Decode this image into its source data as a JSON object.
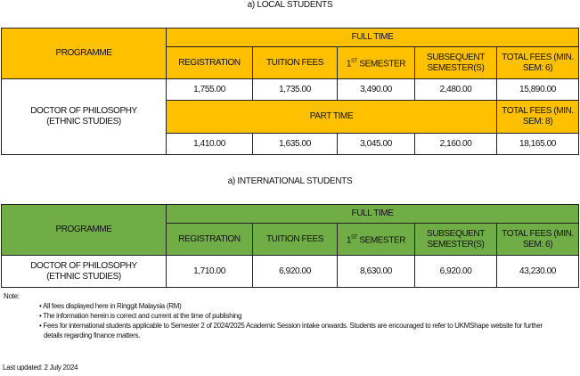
{
  "local": {
    "title": "a)   LOCAL STUDENTS",
    "color": "#ffc000",
    "programme_header": "PROGRAMME",
    "full_time": "FULL TIME",
    "part_time": "PART TIME",
    "cols": [
      "REGISTRATION",
      "TUITION FEES",
      "1",
      "ST",
      "SEMESTER",
      "SUBSEQUENT SEMESTER(S)",
      "TOTAL FEES (MIN. SEM: 6)"
    ],
    "total_pt": "TOTAL FEES (MIN. SEM: 8)",
    "programme": "DOCTOR OF PHILOSOPHY (ETHNIC STUDIES)",
    "full_time_values": [
      "1,755.00",
      "1,735.00",
      "3,490.00",
      "2,480.00",
      "15,890.00"
    ],
    "part_time_values": [
      "1,410.00",
      "1,635.00",
      "3,045.00",
      "2,160.00",
      "18,165.00"
    ]
  },
  "international": {
    "title": "a)   INTERNATIONAL STUDENTS",
    "color": "#70ad47",
    "programme_header": "PROGRAMME",
    "full_time": "FULL TIME",
    "cols": [
      "REGISTRATION",
      "TUITION FEES",
      "1",
      "ST",
      "SEMESTER",
      "SUBSEQUENT SEMESTER(S)",
      "TOTAL FEES (MIN. SEM: 6)"
    ],
    "programme": "DOCTOR OF PHILOSOPHY (ETHNIC STUDIES)",
    "values": [
      "1,710.00",
      "6,920.00",
      "8,630.00",
      "6,920.00",
      "43,230.00"
    ]
  },
  "notes": {
    "label": "Note:",
    "items": [
      "All fees displayed here in Ringgit Malaysia (RM)",
      "The information herein is correct and current at the time of publishing",
      "Fees for international students applicable to Semester 2 of 2024/2025 Academic Session intake onwards. Students are encouraged to refer to UKMShape website for further details regarding finance matters."
    ]
  },
  "last_updated": "Last updated: 2 July 2024"
}
